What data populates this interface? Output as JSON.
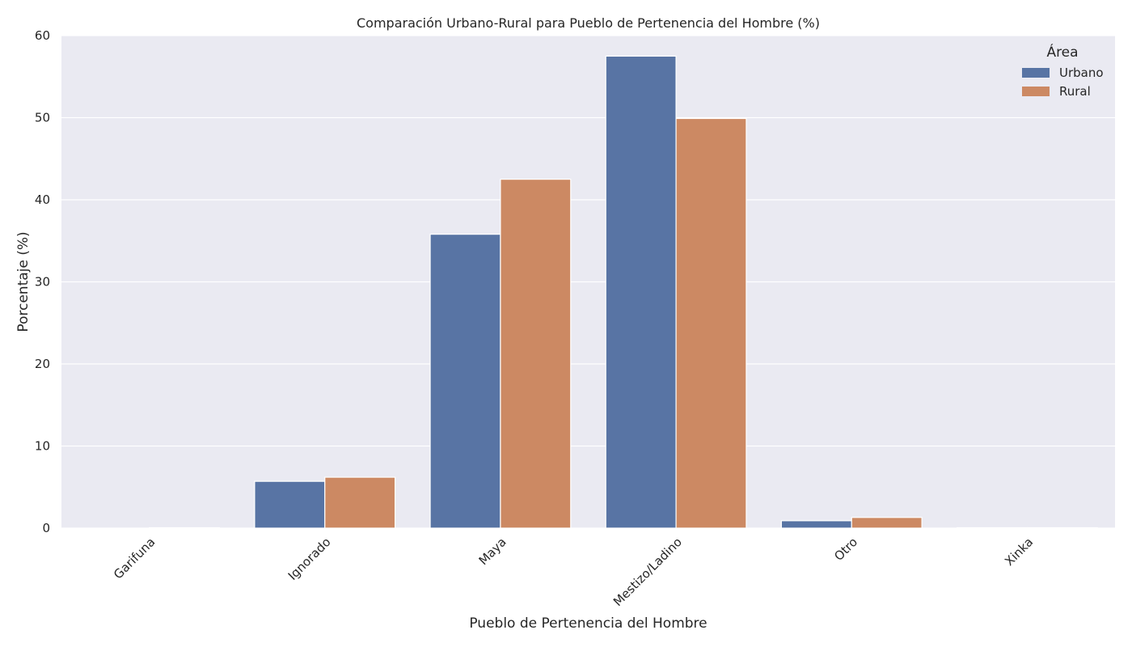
{
  "chart_data": {
    "type": "bar",
    "title": "Comparación Urbano-Rural para Pueblo de Pertenencia del Hombre (%)",
    "xlabel": "Pueblo de Pertenencia del Hombre",
    "ylabel": "Porcentaje (%)",
    "categories": [
      "Garifuna",
      "Ignorado",
      "Maya",
      "Mestizo/Ladino",
      "Otro",
      "Xinka"
    ],
    "series": [
      {
        "name": "Urbano",
        "color": "#5874a4",
        "values": [
          0.0,
          5.7,
          35.8,
          57.5,
          0.9,
          0.05
        ]
      },
      {
        "name": "Rural",
        "color": "#cc8963",
        "values": [
          0.05,
          6.2,
          42.5,
          49.9,
          1.3,
          0.05
        ]
      }
    ],
    "ylim": [
      0,
      60
    ],
    "yticks": [
      0,
      10,
      20,
      30,
      40,
      50,
      60
    ],
    "grid": true,
    "legend": {
      "title": "Área",
      "position": "top-right"
    },
    "background": "#eaeaf2"
  }
}
